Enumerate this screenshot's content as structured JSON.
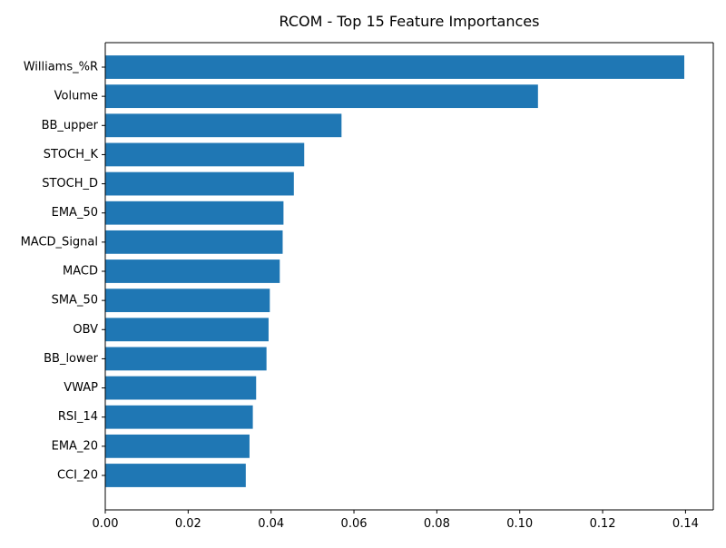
{
  "chart_data": {
    "type": "bar",
    "orientation": "horizontal",
    "title": "RCOM - Top 15 Feature Importances",
    "xlabel": "",
    "ylabel": "",
    "categories": [
      "Williams_%R",
      "Volume",
      "BB_upper",
      "STOCH_K",
      "STOCH_D",
      "EMA_50",
      "MACD_Signal",
      "MACD",
      "SMA_50",
      "OBV",
      "BB_lower",
      "VWAP",
      "RSI_14",
      "EMA_20",
      "CCI_20"
    ],
    "values": [
      0.1397,
      0.1044,
      0.057,
      0.048,
      0.0455,
      0.043,
      0.0428,
      0.0421,
      0.0397,
      0.0394,
      0.0389,
      0.0364,
      0.0356,
      0.0348,
      0.0339
    ],
    "xlim": [
      0.0,
      0.1467
    ],
    "xticks": [
      0.0,
      0.02,
      0.04,
      0.06,
      0.08,
      0.1,
      0.12,
      0.14
    ],
    "xtick_labels": [
      "0.00",
      "0.02",
      "0.04",
      "0.06",
      "0.08",
      "0.10",
      "0.12",
      "0.14"
    ],
    "bar_color": "#1f77b4",
    "grid": false,
    "legend": "none"
  }
}
